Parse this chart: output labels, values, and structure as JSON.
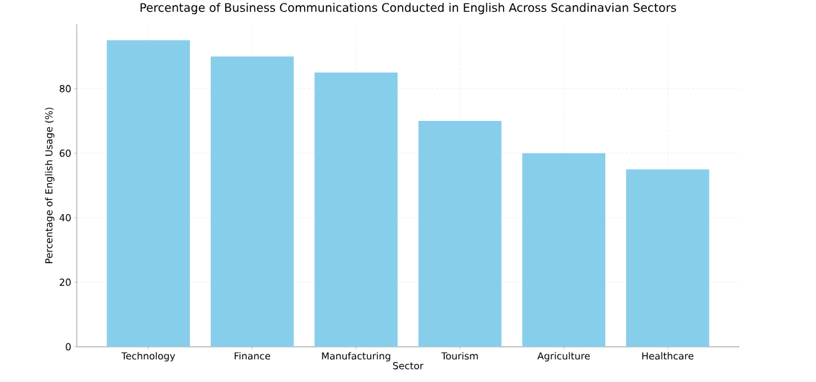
{
  "chart_data": {
    "type": "bar",
    "title": "Percentage of Business Communications Conducted in English Across Scandinavian Sectors",
    "xlabel": "Sector",
    "ylabel": "Percentage of English Usage (%)",
    "categories": [
      "Technology",
      "Finance",
      "Manufacturing",
      "Tourism",
      "Agriculture",
      "Healthcare"
    ],
    "values": [
      95,
      90,
      85,
      70,
      60,
      55
    ],
    "color": "#87ceeb",
    "ylim": [
      0,
      100
    ],
    "yticks": [
      0,
      20,
      40,
      60,
      80
    ],
    "grid": true
  }
}
